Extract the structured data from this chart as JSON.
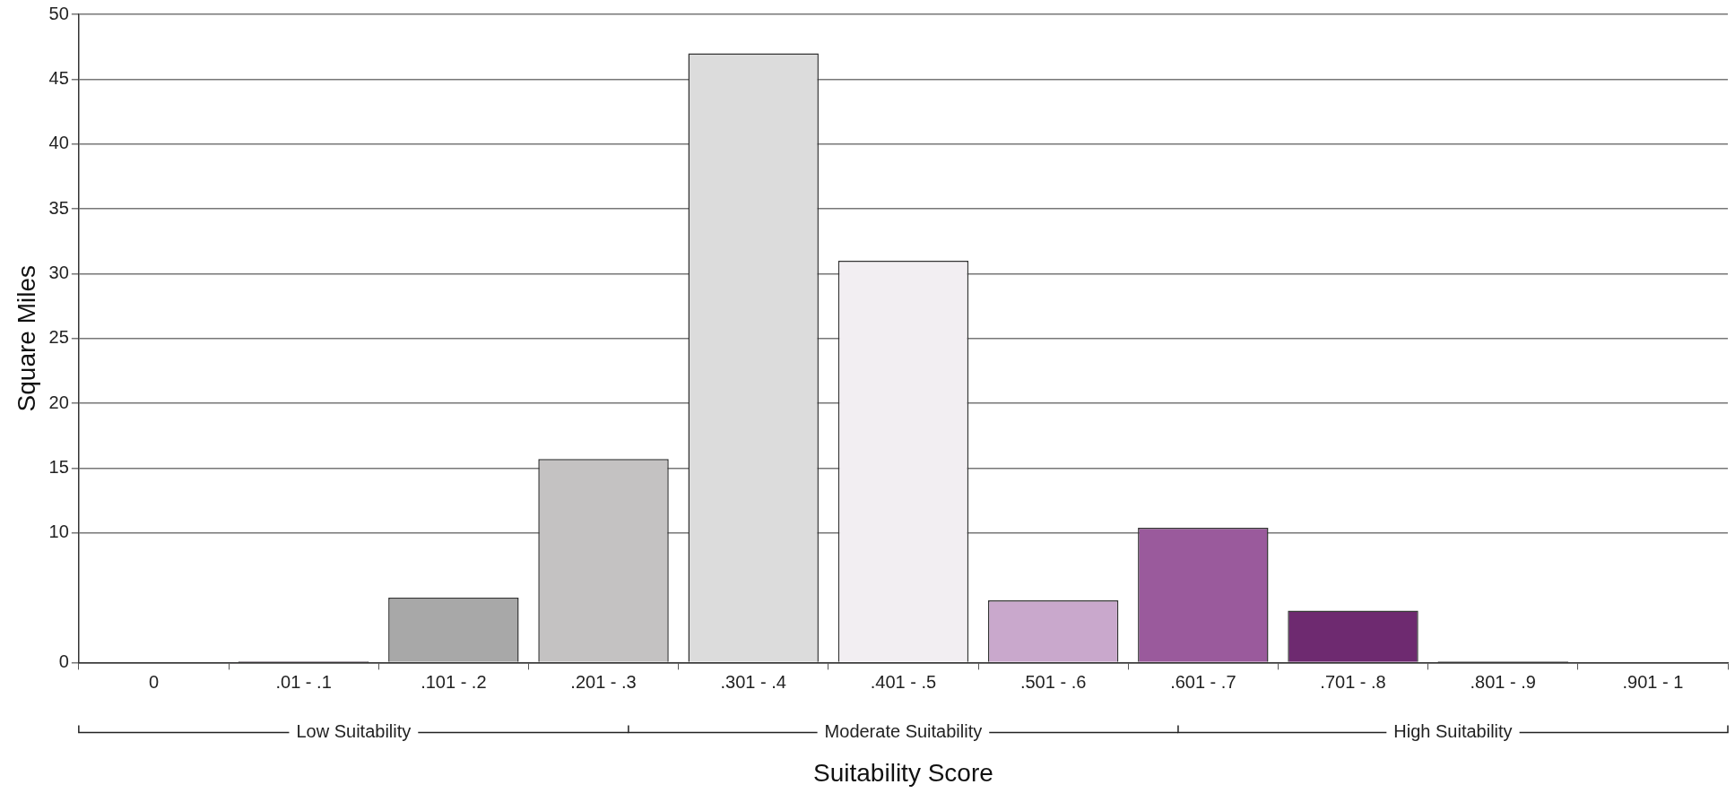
{
  "chart_data": {
    "type": "bar",
    "xlabel": "Suitability Score",
    "ylabel": "Square Miles",
    "categories": [
      "0",
      ".01 - .1",
      ".101 - .2",
      ".201 - .3",
      ".301 - .4",
      ".401 - .5",
      ".501 - .6",
      ".601 - .7",
      ".701 - .8",
      ".801 - .9",
      ".901 - 1"
    ],
    "values": [
      null,
      0.1,
      5,
      15.7,
      47,
      31,
      4.8,
      10.4,
      4,
      0.1,
      null
    ],
    "colors": [
      "#444444",
      "#4a3a4a",
      "#a8a8a8",
      "#c4c2c2",
      "#dcdcdc",
      "#f2eef2",
      "#c9a8cc",
      "#9a5a9c",
      "#6e2a70",
      "#333333",
      "#333333"
    ],
    "ylim": [
      0,
      50
    ],
    "yticks": [
      0,
      10,
      15,
      20,
      25,
      30,
      35,
      40,
      45,
      50
    ],
    "grid": "y",
    "annotations": [
      "Low Suitability",
      "Moderate Suitability",
      "High Suitability"
    ]
  }
}
